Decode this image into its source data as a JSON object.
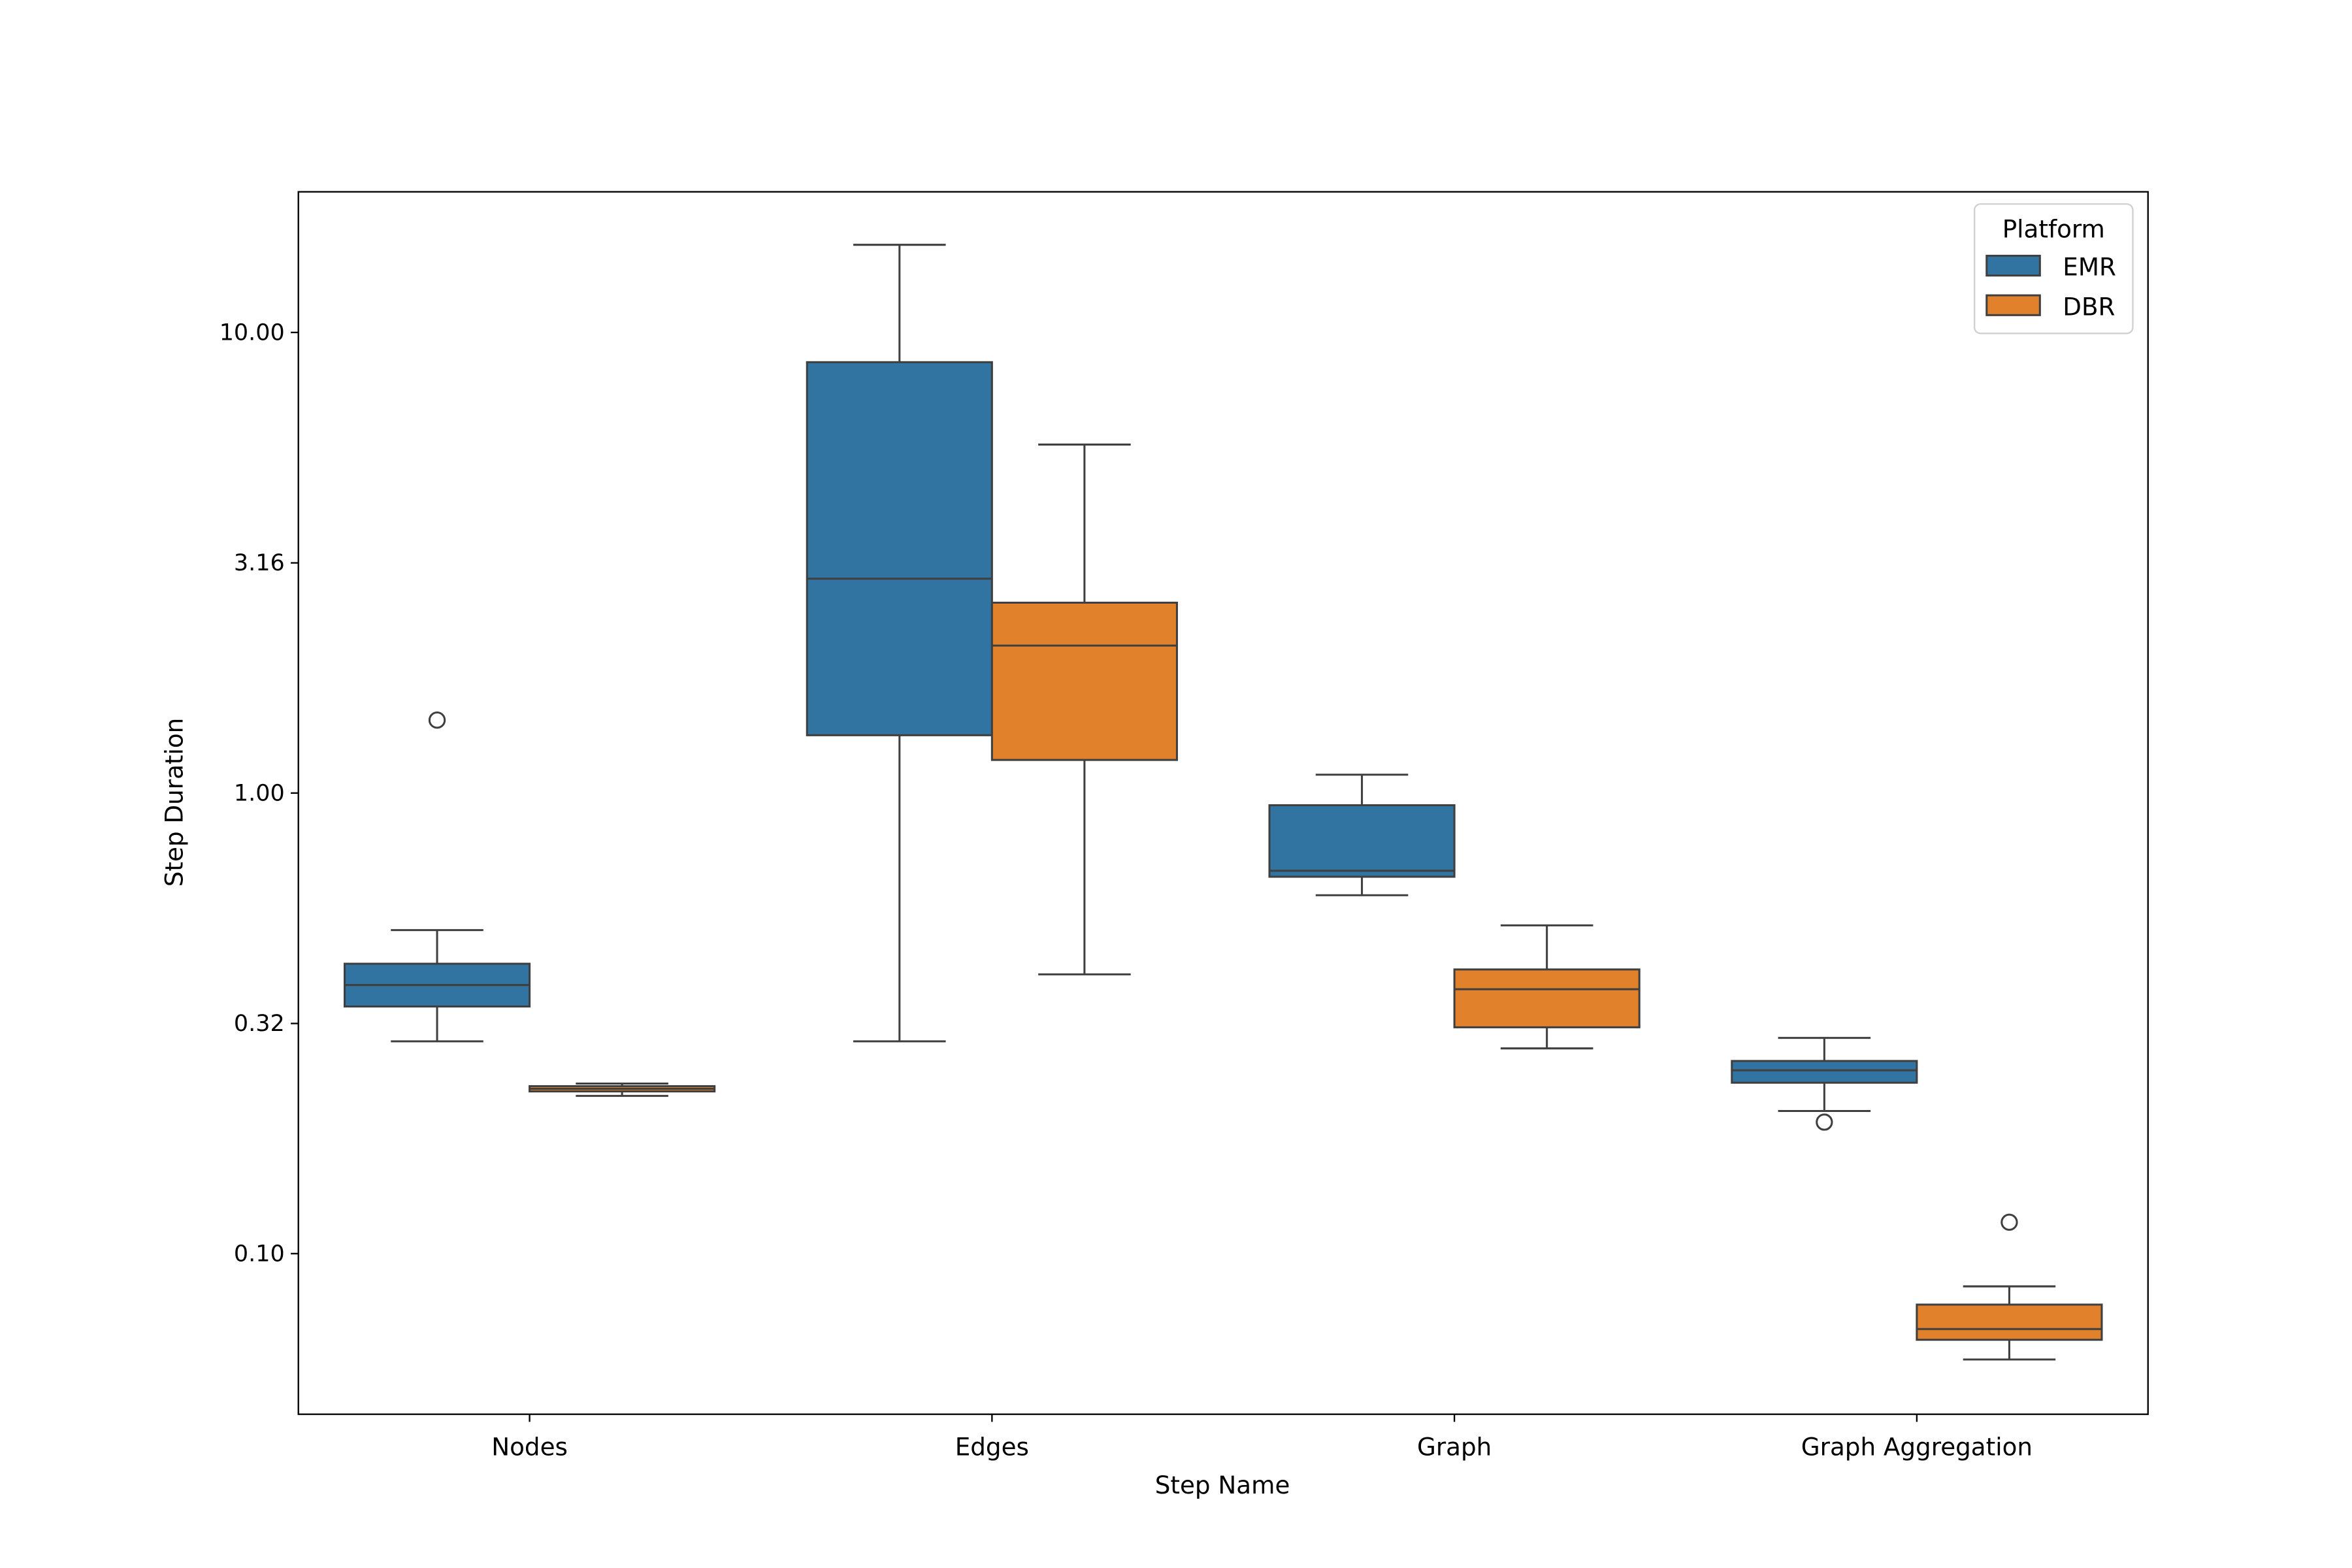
{
  "chart_data": {
    "type": "box",
    "title": "",
    "xlabel": "Step Name",
    "ylabel": "Step Duration",
    "yscale": "log",
    "ylim": [
      0.0448,
      20.2
    ],
    "yticks": [
      {
        "value": 0.1,
        "label": "0.10"
      },
      {
        "value": 0.316,
        "label": "0.32"
      },
      {
        "value": 1.0,
        "label": "1.00"
      },
      {
        "value": 3.16,
        "label": "3.16"
      },
      {
        "value": 10.0,
        "label": "10.00"
      }
    ],
    "categories": [
      "Nodes",
      "Edges",
      "Graph",
      "Graph Aggregation"
    ],
    "grid": false,
    "legend": {
      "title": "Platform",
      "placement": "top-right"
    },
    "series": [
      {
        "name": "EMR",
        "color": "#3274a1",
        "boxes": [
          {
            "whisker_low": 0.289,
            "q1": 0.344,
            "median": 0.383,
            "q3": 0.426,
            "whisker_high": 0.504,
            "outliers": [
              1.44
            ]
          },
          {
            "whisker_low": 0.289,
            "q1": 1.335,
            "median": 2.92,
            "q3": 8.62,
            "whisker_high": 15.5,
            "outliers": []
          },
          {
            "whisker_low": 0.6,
            "q1": 0.658,
            "median": 0.678,
            "q3": 0.941,
            "whisker_high": 1.096,
            "outliers": []
          },
          {
            "whisker_low": 0.204,
            "q1": 0.235,
            "median": 0.25,
            "q3": 0.262,
            "whisker_high": 0.294,
            "outliers": [
              0.193
            ]
          }
        ]
      },
      {
        "name": "DBR",
        "color": "#e1812c",
        "boxes": [
          {
            "whisker_low": 0.22,
            "q1": 0.225,
            "median": 0.228,
            "q3": 0.231,
            "whisker_high": 0.234,
            "outliers": []
          },
          {
            "whisker_low": 0.404,
            "q1": 1.18,
            "median": 2.09,
            "q3": 2.59,
            "whisker_high": 5.71,
            "outliers": []
          },
          {
            "whisker_low": 0.279,
            "q1": 0.31,
            "median": 0.375,
            "q3": 0.414,
            "whisker_high": 0.516,
            "outliers": []
          },
          {
            "whisker_low": 0.0589,
            "q1": 0.065,
            "median": 0.0686,
            "q3": 0.0775,
            "whisker_high": 0.0849,
            "outliers": [
              0.117
            ]
          }
        ]
      }
    ]
  }
}
